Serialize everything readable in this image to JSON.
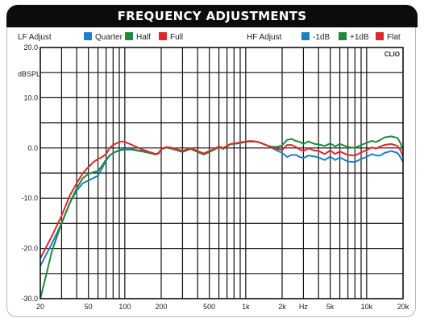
{
  "title": "FREQUENCY ADJUSTMENTS",
  "colors": {
    "blue": "#1f7fc4",
    "green": "#1e8a3e",
    "red": "#e2262b"
  },
  "legend": {
    "lf_label": "LF Adjust",
    "lf_items": [
      {
        "label": "Quarter",
        "color": "#1f7fc4"
      },
      {
        "label": "Half",
        "color": "#1e8a3e"
      },
      {
        "label": "Full",
        "color": "#e2262b"
      }
    ],
    "hf_label": "HF Adjust",
    "hf_items": [
      {
        "label": "-1dB",
        "color": "#1f7fc4"
      },
      {
        "label": "+1dB",
        "color": "#1e8a3e"
      },
      {
        "label": "Flat",
        "color": "#e2262b"
      }
    ]
  },
  "brand": "CLIO",
  "chart_data": {
    "type": "line",
    "title": "FREQUENCY ADJUSTMENTS",
    "xlabel": "Hz",
    "ylabel": "dBSPL",
    "x_scale": "log",
    "xlim": [
      20,
      20000
    ],
    "ylim": [
      -30,
      20
    ],
    "grid": true,
    "x_ticks": [
      {
        "value": 20,
        "label": "20"
      },
      {
        "value": 50,
        "label": "50"
      },
      {
        "value": 100,
        "label": "100"
      },
      {
        "value": 200,
        "label": "200"
      },
      {
        "value": 500,
        "label": "500"
      },
      {
        "value": 1000,
        "label": "1k"
      },
      {
        "value": 2000,
        "label": "2k"
      },
      {
        "value": 5000,
        "label": "5k"
      },
      {
        "value": 10000,
        "label": "10k"
      },
      {
        "value": 20000,
        "label": "20k"
      }
    ],
    "y_ticks": [
      {
        "value": 20,
        "label": "20.0"
      },
      {
        "value": 10,
        "label": "10.0"
      },
      {
        "value": 0,
        "label": "0.0"
      },
      {
        "value": -10,
        "label": "-10.0"
      },
      {
        "value": -20,
        "label": "-20.0"
      },
      {
        "value": -30,
        "label": "-30.0"
      }
    ],
    "series": [
      {
        "name": "Quarter",
        "color": "#1f7fc4",
        "points": [
          [
            20,
            -23.5
          ],
          [
            25,
            -19
          ],
          [
            30,
            -15
          ],
          [
            35,
            -11
          ],
          [
            40,
            -8.5
          ],
          [
            45,
            -7
          ],
          [
            50,
            -6.5
          ],
          [
            55,
            -6
          ],
          [
            60,
            -5.5
          ],
          [
            65,
            -4
          ],
          [
            70,
            -2.5
          ],
          [
            75,
            -1.5
          ],
          [
            80,
            -1
          ],
          [
            90,
            -0.4
          ],
          [
            100,
            -0.2
          ],
          [
            110,
            -0.2
          ],
          [
            120,
            -0.3
          ],
          [
            130,
            -0.5
          ],
          [
            140,
            -0.6
          ],
          [
            160,
            -1
          ],
          [
            180,
            -1.3
          ],
          [
            190,
            -1.1
          ],
          [
            200,
            -0.3
          ],
          [
            220,
            0.1
          ],
          [
            250,
            -0.2
          ],
          [
            300,
            -0.8
          ],
          [
            350,
            -0.2
          ],
          [
            400,
            -0.8
          ],
          [
            450,
            -1.3
          ],
          [
            500,
            -0.8
          ],
          [
            550,
            -0.3
          ],
          [
            600,
            0.2
          ],
          [
            650,
            -0.2
          ],
          [
            700,
            0.3
          ],
          [
            750,
            0.8
          ],
          [
            800,
            0.8
          ],
          [
            900,
            1
          ],
          [
            1000,
            1.2
          ],
          [
            1100,
            1.3
          ],
          [
            1200,
            1.3
          ],
          [
            1300,
            1.1
          ],
          [
            1400,
            0.8
          ],
          [
            1500,
            0.5
          ],
          [
            1600,
            0.2
          ],
          [
            1800,
            -0.5
          ],
          [
            2000,
            -1
          ],
          [
            2200,
            -1.8
          ],
          [
            2400,
            -1.4
          ],
          [
            2600,
            -1.4
          ],
          [
            2800,
            -1.8
          ],
          [
            3000,
            -2
          ],
          [
            3300,
            -1.5
          ],
          [
            3700,
            -1.7
          ],
          [
            4000,
            -1.9
          ],
          [
            4500,
            -2.4
          ],
          [
            5000,
            -1.7
          ],
          [
            5500,
            -2.4
          ],
          [
            6000,
            -1.9
          ],
          [
            7000,
            -2.7
          ],
          [
            8000,
            -2.8
          ],
          [
            9000,
            -2.2
          ],
          [
            10000,
            -1.8
          ],
          [
            11000,
            -1.2
          ],
          [
            12000,
            -1.5
          ],
          [
            13000,
            -1.5
          ],
          [
            14000,
            -1
          ],
          [
            16000,
            -0.6
          ],
          [
            18000,
            -1
          ],
          [
            19000,
            -1.8
          ],
          [
            20000,
            -2.8
          ]
        ]
      },
      {
        "name": "Half",
        "color": "#1e8a3e",
        "points": [
          [
            20,
            -30
          ],
          [
            22,
            -26
          ],
          [
            25,
            -20.5
          ],
          [
            30,
            -15
          ],
          [
            35,
            -11
          ],
          [
            40,
            -8
          ],
          [
            45,
            -6
          ],
          [
            50,
            -5.2
          ],
          [
            55,
            -4.8
          ],
          [
            60,
            -4.6
          ],
          [
            65,
            -3.5
          ],
          [
            70,
            -2.3
          ],
          [
            75,
            -1.5
          ],
          [
            80,
            -1
          ],
          [
            90,
            -0.5
          ],
          [
            100,
            -0.3
          ],
          [
            110,
            -0.3
          ],
          [
            120,
            -0.4
          ],
          [
            130,
            -0.6
          ],
          [
            140,
            -0.7
          ],
          [
            160,
            -1
          ],
          [
            180,
            -1.3
          ],
          [
            190,
            -1.1
          ],
          [
            200,
            -0.3
          ],
          [
            220,
            0.1
          ],
          [
            250,
            -0.2
          ],
          [
            300,
            -0.8
          ],
          [
            350,
            -0.2
          ],
          [
            400,
            -0.8
          ],
          [
            450,
            -1.3
          ],
          [
            500,
            -0.8
          ],
          [
            550,
            -0.3
          ],
          [
            600,
            0.2
          ],
          [
            650,
            -0.2
          ],
          [
            700,
            0.3
          ],
          [
            750,
            0.8
          ],
          [
            800,
            0.8
          ],
          [
            900,
            1
          ],
          [
            1000,
            1.2
          ],
          [
            1100,
            1.3
          ],
          [
            1200,
            1.3
          ],
          [
            1300,
            1.1
          ],
          [
            1400,
            0.8
          ],
          [
            1500,
            0.5
          ],
          [
            1600,
            0.3
          ],
          [
            1800,
            0.2
          ],
          [
            2000,
            0.5
          ],
          [
            2200,
            1.6
          ],
          [
            2400,
            1.8
          ],
          [
            2600,
            1.4
          ],
          [
            2800,
            1.2
          ],
          [
            3000,
            0.8
          ],
          [
            3300,
            1.3
          ],
          [
            3700,
            0.8
          ],
          [
            4000,
            0.7
          ],
          [
            4500,
            0.4
          ],
          [
            5000,
            0.9
          ],
          [
            5500,
            0.3
          ],
          [
            6000,
            0.8
          ],
          [
            7000,
            0.2
          ],
          [
            8000,
            0
          ],
          [
            9000,
            0.6
          ],
          [
            10000,
            1
          ],
          [
            11000,
            1.4
          ],
          [
            12000,
            1.2
          ],
          [
            13000,
            1.6
          ],
          [
            14000,
            2.1
          ],
          [
            16000,
            2.3
          ],
          [
            18000,
            2
          ],
          [
            19000,
            1
          ],
          [
            20000,
            -0.5
          ]
        ]
      },
      {
        "name": "Full",
        "color": "#e2262b",
        "points": [
          [
            20,
            -22
          ],
          [
            25,
            -17.5
          ],
          [
            30,
            -13.5
          ],
          [
            35,
            -9.5
          ],
          [
            40,
            -7
          ],
          [
            45,
            -5
          ],
          [
            50,
            -3.8
          ],
          [
            55,
            -2.8
          ],
          [
            60,
            -2.2
          ],
          [
            65,
            -1.8
          ],
          [
            70,
            -1.2
          ],
          [
            75,
            0
          ],
          [
            80,
            0.6
          ],
          [
            90,
            1.2
          ],
          [
            95,
            1.3
          ],
          [
            100,
            1.2
          ],
          [
            110,
            0.8
          ],
          [
            120,
            0.4
          ],
          [
            130,
            0
          ],
          [
            140,
            -0.3
          ],
          [
            160,
            -0.8
          ],
          [
            180,
            -1.2
          ],
          [
            190,
            -1
          ],
          [
            200,
            -0.2
          ],
          [
            220,
            0.2
          ],
          [
            250,
            0
          ],
          [
            300,
            -0.6
          ],
          [
            350,
            0
          ],
          [
            400,
            -0.6
          ],
          [
            450,
            -1.1
          ],
          [
            500,
            -0.6
          ],
          [
            550,
            -0.2
          ],
          [
            600,
            0.3
          ],
          [
            650,
            0
          ],
          [
            700,
            0.4
          ],
          [
            750,
            0.8
          ],
          [
            800,
            0.9
          ],
          [
            900,
            1.1
          ],
          [
            1000,
            1.3
          ],
          [
            1100,
            1.4
          ],
          [
            1200,
            1.3
          ],
          [
            1300,
            1.1
          ],
          [
            1400,
            0.8
          ],
          [
            1500,
            0.5
          ],
          [
            1600,
            0.3
          ],
          [
            1800,
            -0.2
          ],
          [
            2000,
            -0.4
          ],
          [
            2200,
            0.6
          ],
          [
            2400,
            0.6
          ],
          [
            2600,
            0.2
          ],
          [
            2800,
            -0.3
          ],
          [
            3000,
            -0.6
          ],
          [
            3300,
            -0.1
          ],
          [
            3700,
            -0.5
          ],
          [
            4000,
            -0.6
          ],
          [
            4500,
            -1.2
          ],
          [
            5000,
            -0.5
          ],
          [
            5500,
            -1.2
          ],
          [
            6000,
            -0.7
          ],
          [
            7000,
            -1.4
          ],
          [
            8000,
            -1.5
          ],
          [
            9000,
            -0.9
          ],
          [
            10000,
            -0.4
          ],
          [
            11000,
            0.1
          ],
          [
            12000,
            -0.1
          ],
          [
            13000,
            0.3
          ],
          [
            14000,
            0.6
          ],
          [
            16000,
            0.8
          ],
          [
            18000,
            0.4
          ],
          [
            19000,
            -0.4
          ],
          [
            20000,
            -1.7
          ]
        ]
      }
    ]
  }
}
